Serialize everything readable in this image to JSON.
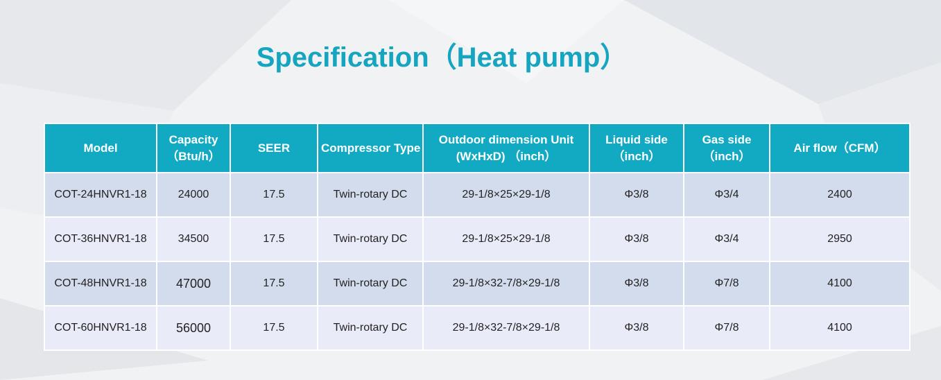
{
  "title": "Specification（Heat pump）",
  "table": {
    "headers": [
      {
        "line1": "Model",
        "line2": ""
      },
      {
        "line1": "Capacity",
        "line2": "（Btu/h）"
      },
      {
        "line1": "SEER",
        "line2": ""
      },
      {
        "line1": "Compressor Type",
        "line2": ""
      },
      {
        "line1": "Outdoor dimension Unit",
        "line2": "(WxHxD) （inch）"
      },
      {
        "line1": "Liquid side",
        "line2": "（inch）"
      },
      {
        "line1": "Gas side",
        "line2": "（inch）"
      },
      {
        "line1": "Air flow（CFM）",
        "line2": ""
      }
    ],
    "rows": [
      {
        "model": "COT-24HNVR1-18",
        "capacity": "24000",
        "seer": "17.5",
        "compressor": "Twin-rotary  DC",
        "dimension": "29-1/8×25×29-1/8",
        "liquid": "Φ3/8",
        "gas": "Φ3/4",
        "airflow": "2400"
      },
      {
        "model": "COT-36HNVR1-18",
        "capacity": "34500",
        "seer": "17.5",
        "compressor": "Twin-rotary  DC",
        "dimension": "29-1/8×25×29-1/8",
        "liquid": "Φ3/8",
        "gas": "Φ3/4",
        "airflow": "2950"
      },
      {
        "model": "COT-48HNVR1-18",
        "capacity": "47000",
        "seer": "17.5",
        "compressor": "Twin-rotary  DC",
        "dimension": "29-1/8×32-7/8×29-1/8",
        "liquid": "Φ3/8",
        "gas": "Φ7/8",
        "airflow": "4100"
      },
      {
        "model": "COT-60HNVR1-18",
        "capacity": "56000",
        "seer": "17.5",
        "compressor": "Twin-rotary  DC",
        "dimension": "29-1/8×32-7/8×29-1/8",
        "liquid": "Φ3/8",
        "gas": "Φ7/8",
        "airflow": "4100"
      }
    ]
  },
  "colors": {
    "accent": "#16a5c1",
    "header_bg": "#12aac3",
    "row_odd": "#d3dcec",
    "row_even": "#e9ecf8"
  }
}
